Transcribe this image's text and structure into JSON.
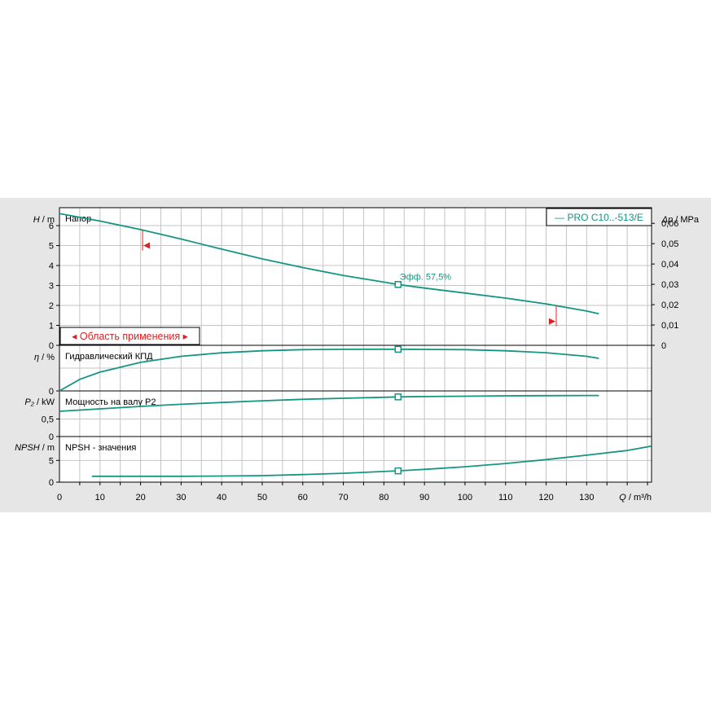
{
  "colors": {
    "panel_bg": "#e6e6e6",
    "plot_bg": "#ffffff",
    "grid": "#c4c4c4",
    "frame": "#000000",
    "curve": "#149682",
    "marker_red": "#e41e1e"
  },
  "chart_data": {
    "type": "line",
    "x_axis": {
      "label_symbol": "Q",
      "label_unit": " / m³/h",
      "range": [
        0,
        146
      ],
      "ticks": [
        0,
        10,
        20,
        30,
        40,
        50,
        60,
        70,
        80,
        90,
        100,
        110,
        120,
        130
      ],
      "grid_step": 5
    },
    "legend": {
      "text": "— PRO C10..-513/E",
      "position": "top-right"
    },
    "operating_point_q": 83.5,
    "panels": [
      {
        "id": "head",
        "title": "Напор",
        "y_symbol": "H",
        "y_unit": " / m",
        "ylim": [
          0,
          6.9
        ],
        "ticks": [
          0,
          1,
          2,
          3,
          4,
          5,
          6
        ],
        "right_axis": {
          "symbol": "Δp",
          "unit": " / MPa",
          "ticks": [
            0,
            0.01,
            0.02,
            0.03,
            0.04,
            0.05,
            0.06
          ],
          "tick_labels": [
            "0",
            "0,01",
            "0,02",
            "0,03",
            "0,04",
            "0,05",
            "0,06"
          ],
          "factor": 0.00981
        },
        "series": [
          {
            "x": [
              0,
              10,
              20,
              30,
              40,
              50,
              60,
              70,
              80,
              83.5,
              90,
              100,
              110,
              120,
              130,
              133
            ],
            "y": [
              6.6,
              6.23,
              5.8,
              5.33,
              4.82,
              4.33,
              3.9,
              3.5,
              3.17,
              3.05,
              2.87,
              2.62,
              2.37,
              2.08,
              1.72,
              1.58
            ]
          }
        ],
        "efficiency_label": "Эфф.  57,5%",
        "range_label": "◂ Область применения ▸",
        "range_markers": [
          {
            "q": 20.5,
            "h": 5.0,
            "direction": "left"
          },
          {
            "q": 122.5,
            "h": 1.2,
            "direction": "right"
          }
        ]
      },
      {
        "id": "efficiency",
        "title": "Гидравлический КПД",
        "y_symbol": "η",
        "y_unit": " / %",
        "ylim": [
          0,
          63
        ],
        "ticks": [
          0
        ],
        "series": [
          {
            "x": [
              0,
              5,
              10,
              20,
              30,
              40,
              50,
              60,
              70,
              80,
              83.5,
              90,
              100,
              110,
              120,
              130,
              133
            ],
            "y": [
              0,
              16,
              26,
              39.5,
              47.8,
              52.6,
              55.5,
              57,
              57.5,
              57.6,
              57.5,
              57.4,
              57,
              55.5,
              52.8,
              47.8,
              45
            ]
          }
        ]
      },
      {
        "id": "power",
        "title": "Мощность на валу P2",
        "y_symbol": "P₂",
        "y_unit": " / kW",
        "ylim": [
          0,
          1.3
        ],
        "ticks": [
          0,
          0.5
        ],
        "tick_labels": [
          "0",
          "0,5"
        ],
        "series": [
          {
            "x": [
              0,
              10,
              20,
              30,
              40,
              50,
              60,
              70,
              80,
              83.5,
              90,
              100,
              110,
              120,
              130,
              133
            ],
            "y": [
              0.72,
              0.79,
              0.86,
              0.92,
              0.97,
              1.02,
              1.06,
              1.09,
              1.12,
              1.13,
              1.14,
              1.15,
              1.16,
              1.165,
              1.17,
              1.17
            ]
          }
        ]
      },
      {
        "id": "npsh",
        "title": "NPSH - значения",
        "y_symbol": "NPSH",
        "y_unit": " / m",
        "ylim": [
          0,
          10.5
        ],
        "ticks": [
          0,
          5
        ],
        "series": [
          {
            "x": [
              8,
              20,
              30,
              40,
              50,
              60,
              70,
              80,
              83.5,
              90,
              100,
              110,
              120,
              130,
              140,
              146
            ],
            "y": [
              1.35,
              1.35,
              1.35,
              1.4,
              1.5,
              1.75,
              2.05,
              2.45,
              2.6,
              2.95,
              3.55,
              4.3,
              5.2,
              6.2,
              7.3,
              8.3
            ]
          }
        ]
      }
    ]
  }
}
